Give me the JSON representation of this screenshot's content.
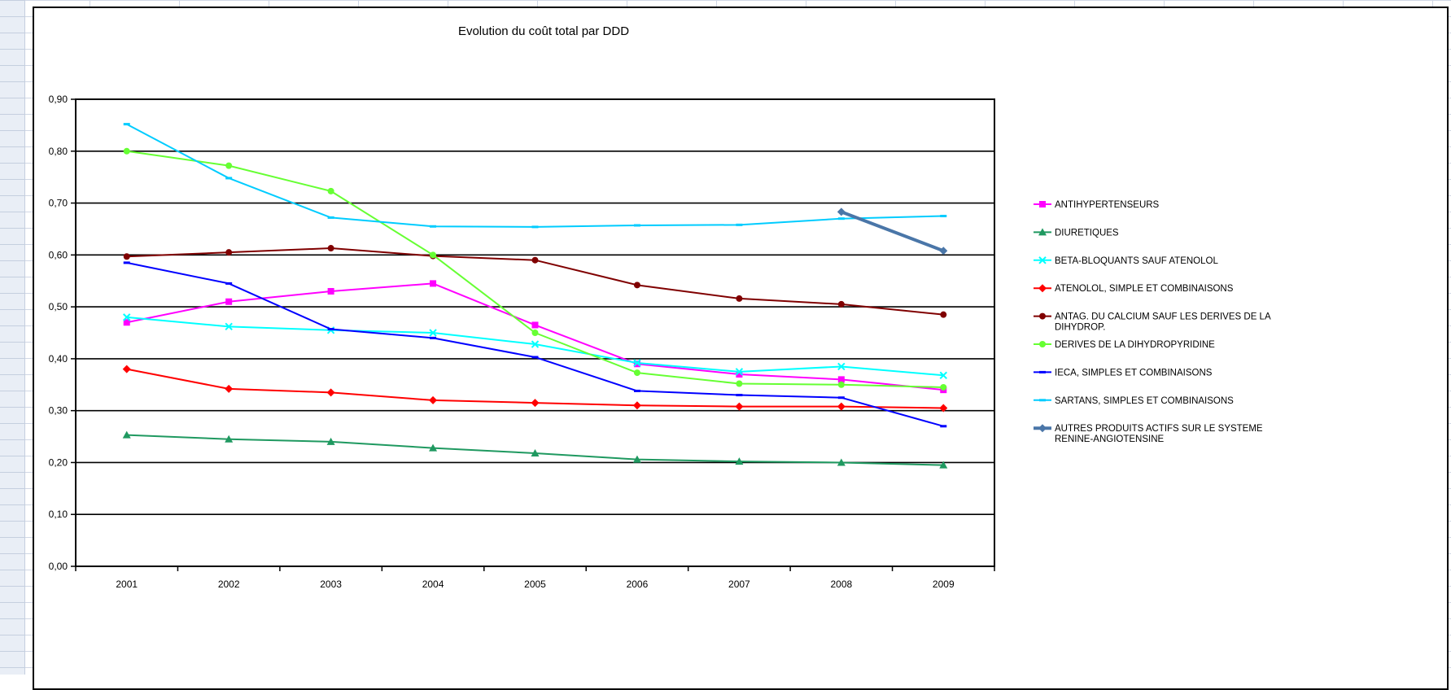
{
  "chart_data": {
    "type": "line",
    "title": "Evolution du coût total par DDD",
    "xlabel": "",
    "ylabel": "",
    "categories": [
      "2001",
      "2002",
      "2003",
      "2004",
      "2005",
      "2006",
      "2007",
      "2008",
      "2009"
    ],
    "ylim": [
      0,
      0.9
    ],
    "ytick_step": 0.1,
    "y_tick_labels": [
      "0,00",
      "0,10",
      "0,20",
      "0,30",
      "0,40",
      "0,50",
      "0,60",
      "0,70",
      "0,80",
      "0,90"
    ],
    "grid": "horizontal",
    "legend": "right",
    "series": [
      {
        "name": "ANTIHYPERTENSEURS",
        "color": "#ff00ff",
        "marker": "square",
        "width": 2,
        "values": [
          0.47,
          0.51,
          0.53,
          0.545,
          0.465,
          0.39,
          0.37,
          0.36,
          0.34
        ]
      },
      {
        "name": "DIURETIQUES",
        "color": "#1f9960",
        "marker": "triangle",
        "width": 2,
        "values": [
          0.253,
          0.245,
          0.24,
          0.228,
          0.218,
          0.206,
          0.202,
          0.2,
          0.195
        ]
      },
      {
        "name": "BETA-BLOQUANTS SAUF ATENOLOL",
        "color": "#00ffff",
        "marker": "x",
        "width": 2,
        "values": [
          0.48,
          0.462,
          0.455,
          0.45,
          0.428,
          0.392,
          0.375,
          0.385,
          0.368
        ]
      },
      {
        "name": "ATENOLOL, SIMPLE ET COMBINAISONS",
        "color": "#ff0000",
        "marker": "diamond",
        "width": 2,
        "values": [
          0.38,
          0.342,
          0.335,
          0.32,
          0.315,
          0.31,
          0.308,
          0.308,
          0.305
        ]
      },
      {
        "name": "ANTAG. DU CALCIUM SAUF LES DERIVES DE LA DIHYDROP.",
        "color": "#800000",
        "marker": "circle",
        "width": 2,
        "values": [
          0.597,
          0.605,
          0.613,
          0.598,
          0.59,
          0.542,
          0.516,
          0.505,
          0.485
        ]
      },
      {
        "name": "DERIVES DE LA DIHYDROPYRIDINE",
        "color": "#66ff33",
        "marker": "circle",
        "width": 2,
        "values": [
          0.8,
          0.772,
          0.723,
          0.6,
          0.45,
          0.373,
          0.352,
          0.35,
          0.345
        ]
      },
      {
        "name": "IECA, SIMPLES ET COMBINAISONS",
        "color": "#0000ff",
        "marker": "dash",
        "width": 2,
        "values": [
          0.585,
          0.545,
          0.457,
          0.44,
          0.403,
          0.338,
          0.33,
          0.325,
          0.27
        ]
      },
      {
        "name": "SARTANS, SIMPLES ET COMBINAISONS",
        "color": "#00ccff",
        "marker": "dash",
        "width": 2,
        "values": [
          0.852,
          0.748,
          0.672,
          0.655,
          0.654,
          0.657,
          0.658,
          0.67,
          0.675
        ]
      },
      {
        "name": "AUTRES PRODUITS ACTIFS SUR LE SYSTEME RENINE-ANGIOTENSINE",
        "color": "#4a76a8",
        "marker": "diamond",
        "width": 4,
        "values": [
          null,
          null,
          null,
          null,
          null,
          null,
          null,
          0.683,
          0.608
        ]
      }
    ]
  }
}
